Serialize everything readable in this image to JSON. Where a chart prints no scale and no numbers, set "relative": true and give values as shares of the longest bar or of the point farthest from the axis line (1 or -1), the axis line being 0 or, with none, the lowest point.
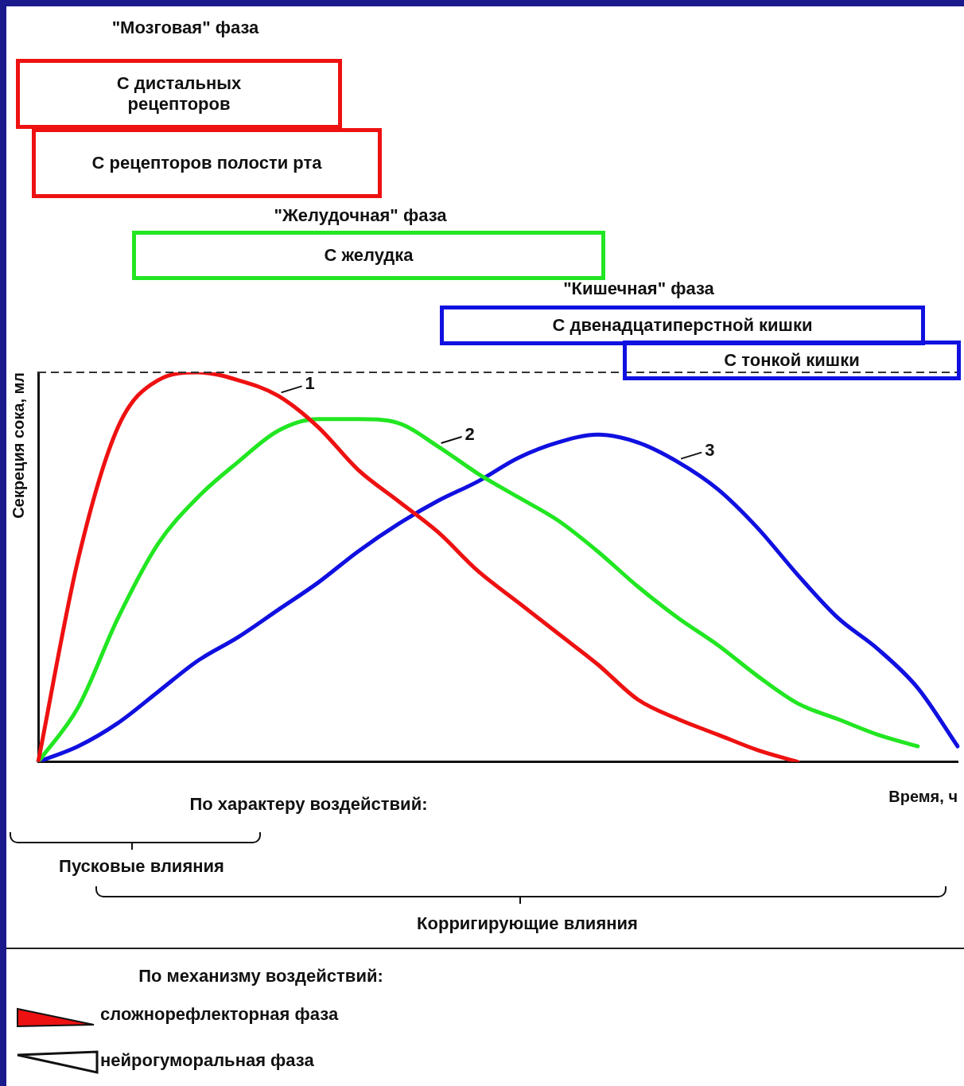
{
  "chart_data": {
    "type": "line",
    "relative": true,
    "xlabel": "Время, ч",
    "ylabel": "Секреция сока, мл",
    "categories": [
      null,
      null,
      null,
      null,
      null,
      null,
      null,
      null,
      null,
      null,
      null,
      null,
      null,
      null,
      null,
      null,
      null,
      null,
      null,
      null,
      null,
      null,
      null,
      null
    ],
    "series": [
      {
        "name": "1",
        "color": "#ee1111",
        "values": [
          0,
          0.52,
          0.86,
          0.98,
          1,
          0.98,
          0.94,
          0.86,
          0.75,
          0.67,
          0.59,
          0.49,
          0.41,
          0.33,
          0.25,
          0.16,
          0.11,
          0.07,
          0.03,
          0,
          null,
          null,
          null,
          null
        ]
      },
      {
        "name": "2",
        "color": "#22e622",
        "values": [
          0,
          0.14,
          0.37,
          0.56,
          0.68,
          0.77,
          0.85,
          0.88,
          0.88,
          0.87,
          0.81,
          0.74,
          0.68,
          0.62,
          0.54,
          0.45,
          0.37,
          0.3,
          0.22,
          0.15,
          0.11,
          0.07,
          0.04,
          null
        ]
      },
      {
        "name": "3",
        "color": "#1010e0",
        "values": [
          0,
          0.04,
          0.1,
          0.18,
          0.26,
          0.32,
          0.39,
          0.46,
          0.54,
          0.61,
          0.67,
          0.72,
          0.78,
          0.82,
          0.84,
          0.82,
          0.77,
          0.7,
          0.6,
          0.48,
          0.37,
          0.29,
          0.19,
          0.04
        ]
      }
    ],
    "ref_lines": [
      {
        "axis": "y",
        "value": 1,
        "label": null,
        "color": "#333333",
        "line_style": "dashed"
      }
    ],
    "grid": false,
    "legend": false,
    "marker": "none",
    "line_style": "solid",
    "annotations": [
      "\"Мозговая\" фаза",
      "С дистальных рецепторов",
      "С рецепторов полости рта",
      "\"Желудочная\" фаза",
      "С желудка",
      "\"Кишечная\" фаза",
      "С двенадцатиперстной кишки",
      "С тонкой кишки",
      "По характеру воздействий:",
      "Пусковые влияния",
      "Корригирующие влияния",
      "По механизму воздействий:",
      "сложнорефлекторная фаза",
      "нейрогуморальная фаза"
    ]
  }
}
